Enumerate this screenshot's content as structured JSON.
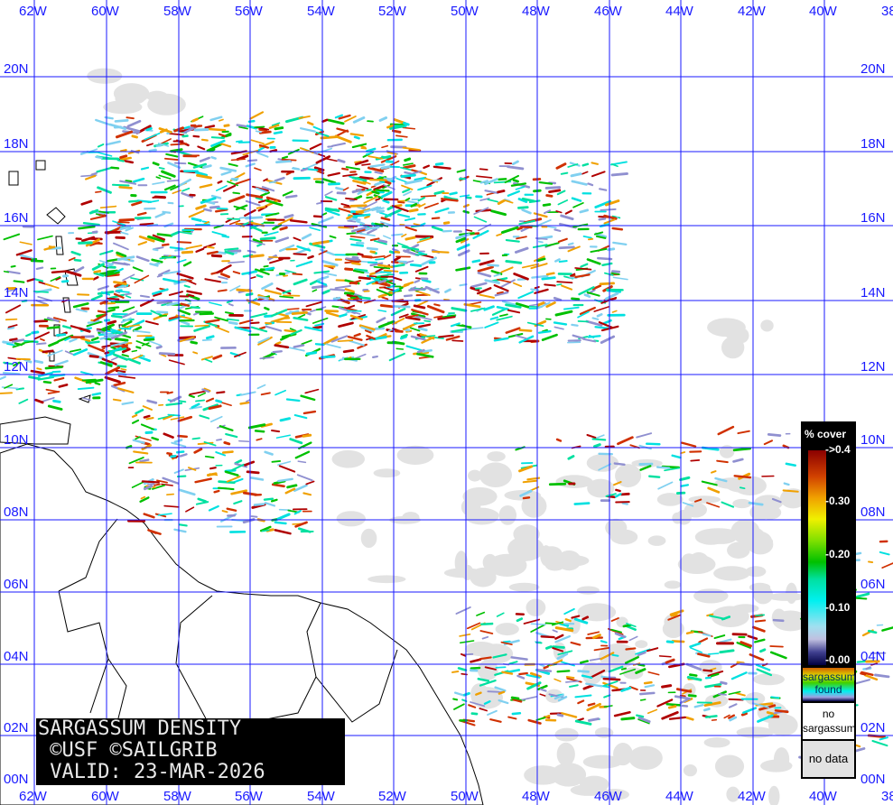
{
  "map": {
    "type": "sargassum density map",
    "longitude_labels": [
      "62W",
      "60W",
      "58W",
      "56W",
      "54W",
      "52W",
      "50W",
      "48W",
      "46W",
      "44W",
      "42W",
      "40W",
      "38"
    ],
    "latitude_labels": [
      "20N",
      "18N",
      "16N",
      "14N",
      "12N",
      "10N",
      "08N",
      "06N",
      "04N",
      "02N",
      "00N"
    ],
    "colors": {
      "grid": "#1a1aff",
      "land": "#ffffff",
      "coast": "#000000",
      "no_data": "#e2e2e2",
      "high": "#b00000",
      "medium": "#00c000",
      "low": "#00e0e0"
    }
  },
  "caption": {
    "line1": "SARGASSUM DENSITY",
    "line2": " ©USF ©SAILGRIB",
    "line3": " VALID: 23-MAR-2026"
  },
  "legend": {
    "title": "% cover",
    "ticks": [
      "->0.4",
      "-0.30",
      "-0.20",
      "-0.10",
      "-0.00"
    ],
    "found_label": "sargassum found",
    "no_sargassum_label": "no sargassum",
    "no_data_label": "no data"
  }
}
